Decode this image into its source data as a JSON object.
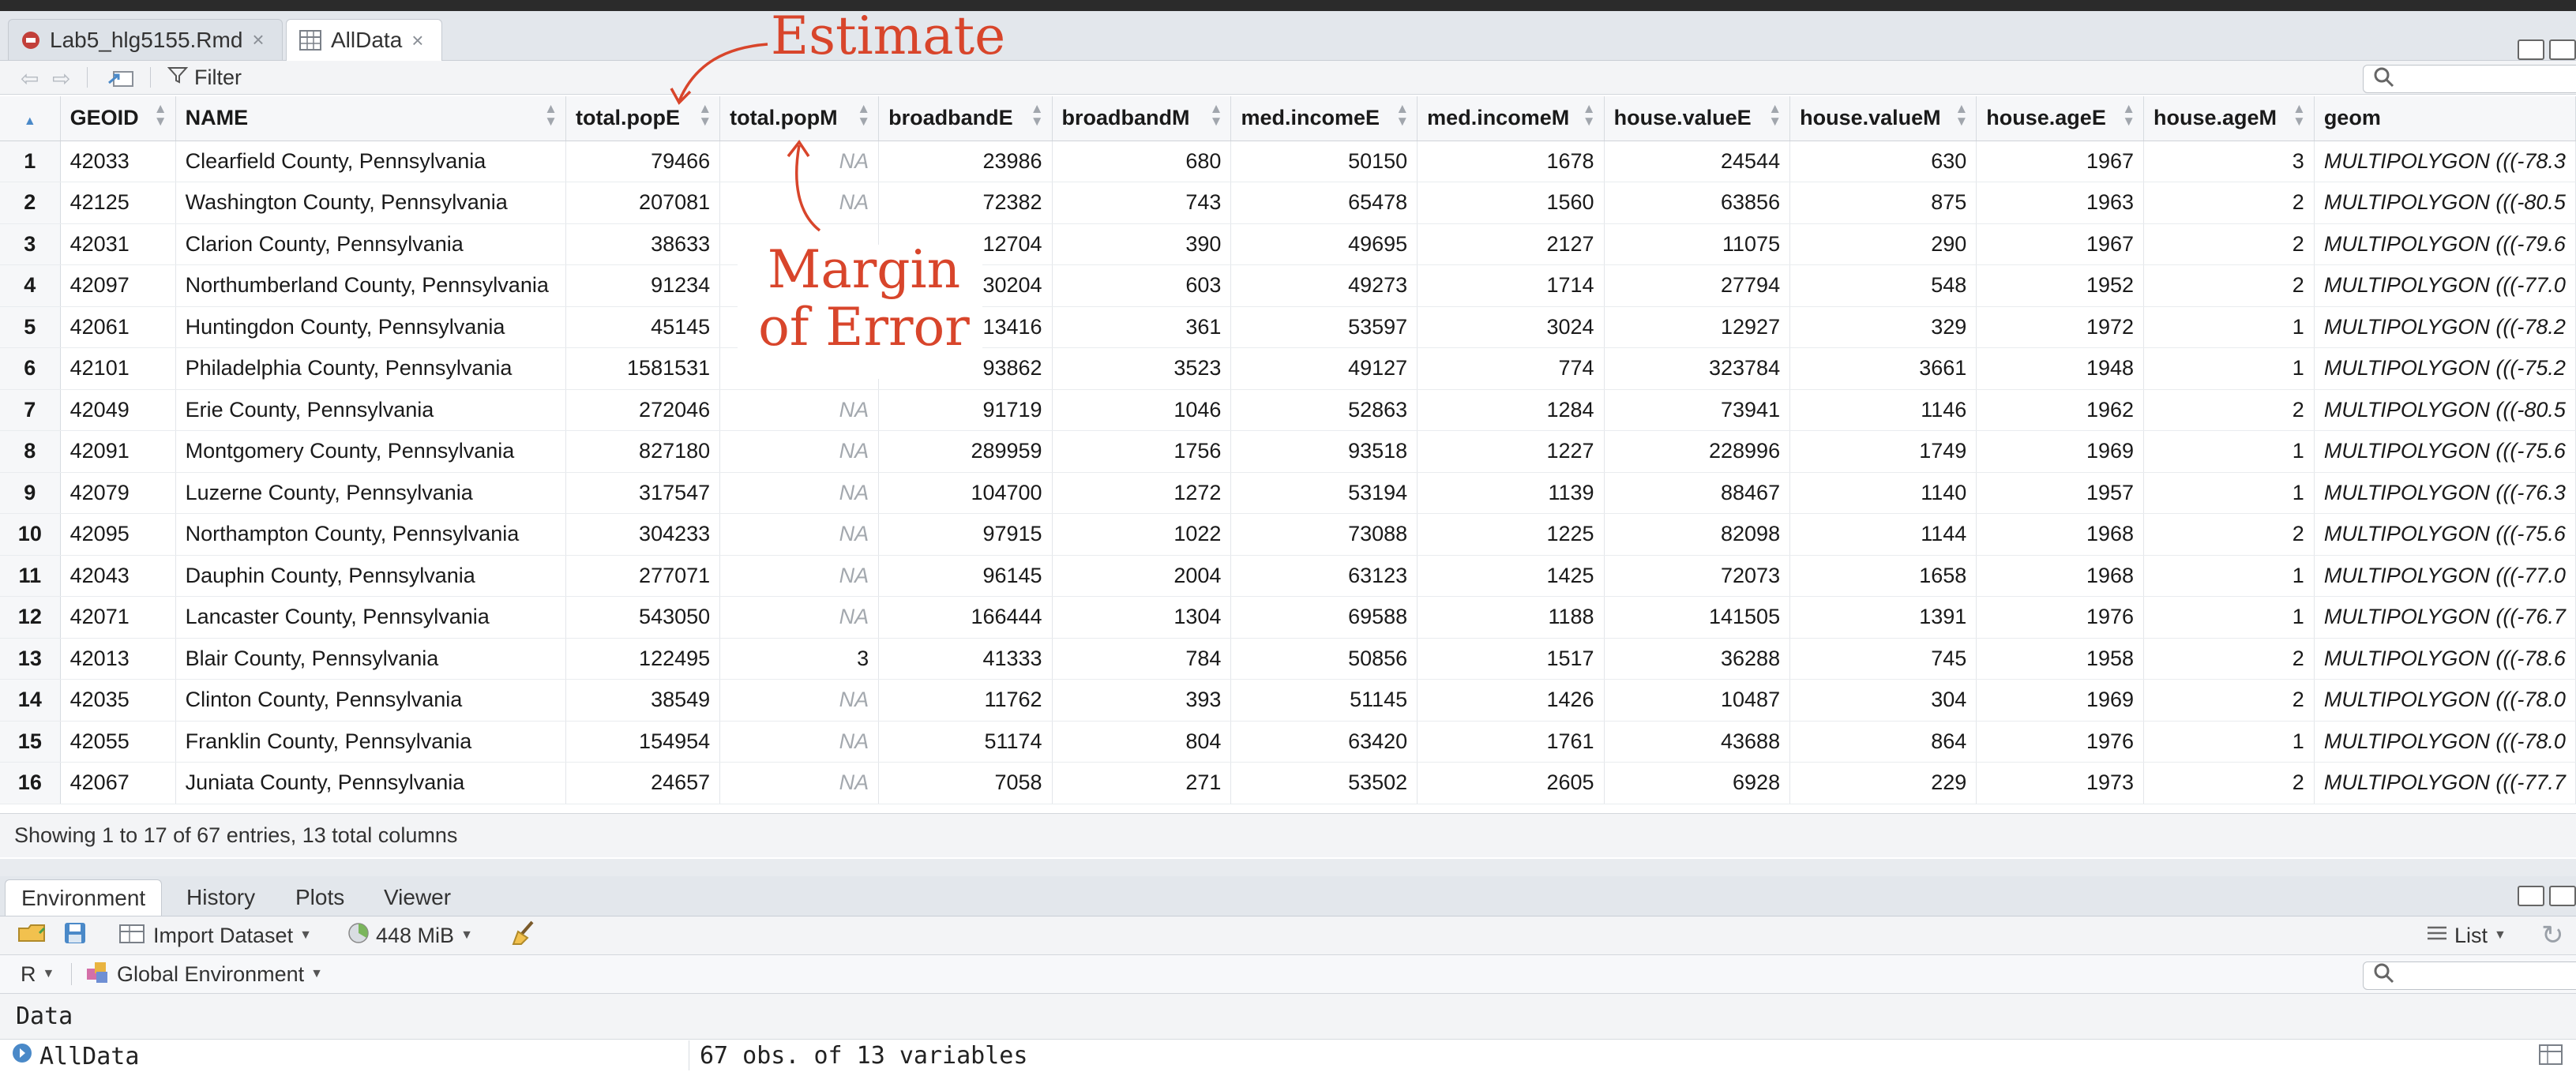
{
  "tabs": [
    {
      "label": "Lab5_hlg5155.Rmd",
      "icon": "rmd-file-icon",
      "active": false
    },
    {
      "label": "AllData",
      "icon": "grid-table-icon",
      "active": true
    }
  ],
  "viewer_toolbar": {
    "filter_label": "Filter"
  },
  "table": {
    "columns": [
      "GEOID",
      "NAME",
      "total.popE",
      "total.popM",
      "broadbandE",
      "broadbandM",
      "med.incomeE",
      "med.incomeM",
      "house.valueE",
      "house.valueM",
      "house.ageE",
      "house.ageM",
      "geom"
    ],
    "rows": [
      {
        "n": "1",
        "geoid": "42033",
        "name": "Clearfield County, Pennsylvania",
        "popE": "79466",
        "popM": "NA",
        "bbE": "23986",
        "bbM": "680",
        "incE": "50150",
        "incM": "1678",
        "valE": "24544",
        "valM": "630",
        "ageE": "1967",
        "ageM": "3",
        "geom": "MULTIPOLYGON (((-78.3"
      },
      {
        "n": "2",
        "geoid": "42125",
        "name": "Washington County, Pennsylvania",
        "popE": "207081",
        "popM": "NA",
        "bbE": "72382",
        "bbM": "743",
        "incE": "65478",
        "incM": "1560",
        "valE": "63856",
        "valM": "875",
        "ageE": "1963",
        "ageM": "2",
        "geom": "MULTIPOLYGON (((-80.5"
      },
      {
        "n": "3",
        "geoid": "42031",
        "name": "Clarion County, Pennsylvania",
        "popE": "38633",
        "popM": "",
        "bbE": "12704",
        "bbM": "390",
        "incE": "49695",
        "incM": "2127",
        "valE": "11075",
        "valM": "290",
        "ageE": "1967",
        "ageM": "2",
        "geom": "MULTIPOLYGON (((-79.6"
      },
      {
        "n": "4",
        "geoid": "42097",
        "name": "Northumberland County, Pennsylvania",
        "popE": "91234",
        "popM": "",
        "bbE": "30204",
        "bbM": "603",
        "incE": "49273",
        "incM": "1714",
        "valE": "27794",
        "valM": "548",
        "ageE": "1952",
        "ageM": "2",
        "geom": "MULTIPOLYGON (((-77.0"
      },
      {
        "n": "5",
        "geoid": "42061",
        "name": "Huntingdon County, Pennsylvania",
        "popE": "45145",
        "popM": "",
        "bbE": "13416",
        "bbM": "361",
        "incE": "53597",
        "incM": "3024",
        "valE": "12927",
        "valM": "329",
        "ageE": "1972",
        "ageM": "1",
        "geom": "MULTIPOLYGON (((-78.2"
      },
      {
        "n": "6",
        "geoid": "42101",
        "name": "Philadelphia County, Pennsylvania",
        "popE": "1581531",
        "popM": "",
        "bbE": "493862",
        "bbM": "3523",
        "incE": "49127",
        "incM": "774",
        "valE": "323784",
        "valM": "3661",
        "ageE": "1948",
        "ageM": "1",
        "geom": "MULTIPOLYGON (((-75.2"
      },
      {
        "n": "7",
        "geoid": "42049",
        "name": "Erie County, Pennsylvania",
        "popE": "272046",
        "popM": "NA",
        "bbE": "91719",
        "bbM": "1046",
        "incE": "52863",
        "incM": "1284",
        "valE": "73941",
        "valM": "1146",
        "ageE": "1962",
        "ageM": "2",
        "geom": "MULTIPOLYGON (((-80.5"
      },
      {
        "n": "8",
        "geoid": "42091",
        "name": "Montgomery County, Pennsylvania",
        "popE": "827180",
        "popM": "NA",
        "bbE": "289959",
        "bbM": "1756",
        "incE": "93518",
        "incM": "1227",
        "valE": "228996",
        "valM": "1749",
        "ageE": "1969",
        "ageM": "1",
        "geom": "MULTIPOLYGON (((-75.6"
      },
      {
        "n": "9",
        "geoid": "42079",
        "name": "Luzerne County, Pennsylvania",
        "popE": "317547",
        "popM": "NA",
        "bbE": "104700",
        "bbM": "1272",
        "incE": "53194",
        "incM": "1139",
        "valE": "88467",
        "valM": "1140",
        "ageE": "1957",
        "ageM": "1",
        "geom": "MULTIPOLYGON (((-76.3"
      },
      {
        "n": "10",
        "geoid": "42095",
        "name": "Northampton County, Pennsylvania",
        "popE": "304233",
        "popM": "NA",
        "bbE": "97915",
        "bbM": "1022",
        "incE": "73088",
        "incM": "1225",
        "valE": "82098",
        "valM": "1144",
        "ageE": "1968",
        "ageM": "2",
        "geom": "MULTIPOLYGON (((-75.6"
      },
      {
        "n": "11",
        "geoid": "42043",
        "name": "Dauphin County, Pennsylvania",
        "popE": "277071",
        "popM": "NA",
        "bbE": "96145",
        "bbM": "2004",
        "incE": "63123",
        "incM": "1425",
        "valE": "72073",
        "valM": "1658",
        "ageE": "1968",
        "ageM": "1",
        "geom": "MULTIPOLYGON (((-77.0"
      },
      {
        "n": "12",
        "geoid": "42071",
        "name": "Lancaster County, Pennsylvania",
        "popE": "543050",
        "popM": "NA",
        "bbE": "166444",
        "bbM": "1304",
        "incE": "69588",
        "incM": "1188",
        "valE": "141505",
        "valM": "1391",
        "ageE": "1976",
        "ageM": "1",
        "geom": "MULTIPOLYGON (((-76.7"
      },
      {
        "n": "13",
        "geoid": "42013",
        "name": "Blair County, Pennsylvania",
        "popE": "122495",
        "popM": "3",
        "bbE": "41333",
        "bbM": "784",
        "incE": "50856",
        "incM": "1517",
        "valE": "36288",
        "valM": "745",
        "ageE": "1958",
        "ageM": "2",
        "geom": "MULTIPOLYGON (((-78.6"
      },
      {
        "n": "14",
        "geoid": "42035",
        "name": "Clinton County, Pennsylvania",
        "popE": "38549",
        "popM": "NA",
        "bbE": "11762",
        "bbM": "393",
        "incE": "51145",
        "incM": "1426",
        "valE": "10487",
        "valM": "304",
        "ageE": "1969",
        "ageM": "2",
        "geom": "MULTIPOLYGON (((-78.0"
      },
      {
        "n": "15",
        "geoid": "42055",
        "name": "Franklin County, Pennsylvania",
        "popE": "154954",
        "popM": "NA",
        "bbE": "51174",
        "bbM": "804",
        "incE": "63420",
        "incM": "1761",
        "valE": "43688",
        "valM": "864",
        "ageE": "1976",
        "ageM": "1",
        "geom": "MULTIPOLYGON (((-78.0"
      },
      {
        "n": "16",
        "geoid": "42067",
        "name": "Juniata County, Pennsylvania",
        "popE": "24657",
        "popM": "NA",
        "bbE": "7058",
        "bbM": "271",
        "incE": "53502",
        "incM": "2605",
        "valE": "6928",
        "valM": "229",
        "ageE": "1973",
        "ageM": "2",
        "geom": "MULTIPOLYGON (((-77.7"
      }
    ]
  },
  "status": "Showing 1 to 17 of 67 entries, 13 total columns",
  "env_tabs": [
    "Environment",
    "History",
    "Plots",
    "Viewer"
  ],
  "env_toolbar": {
    "import_label": "Import Dataset",
    "memory_label": "448 MiB",
    "view_mode": "List"
  },
  "env_scope": {
    "language": "R",
    "environment": "Global Environment"
  },
  "data_section": "Data",
  "env_items": [
    {
      "name": "AllData",
      "desc": "67 obs. of 13 variables"
    }
  ],
  "annotations": {
    "estimate": "Estimate",
    "margin_line1": "Margin",
    "margin_line2": "of Error",
    "color": "#d8452b"
  }
}
